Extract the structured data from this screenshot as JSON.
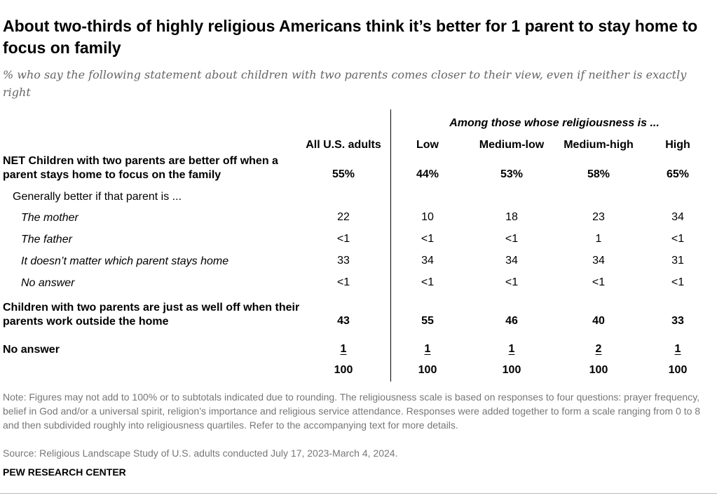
{
  "title": "About two-thirds of highly religious Americans think it’s better for 1 parent to stay home to focus on family",
  "subtitle": "% who say the following statement about children with two parents comes closer to their view, even if neither is exactly right",
  "chart_data": {
    "type": "table",
    "group_header": "Among those whose religiousness is ...",
    "columns": [
      "All U.S. adults",
      "Low",
      "Medium-low",
      "Medium-high",
      "High"
    ],
    "rows": [
      {
        "label": "NET Children with two parents are better off when a parent stays home to focus on the family",
        "values": [
          "55%",
          "44%",
          "53%",
          "58%",
          "65%"
        ],
        "style": "bold"
      },
      {
        "label": "Generally better if that parent is ...",
        "values": [],
        "style": "sub"
      },
      {
        "label": "The mother",
        "values": [
          "22",
          "10",
          "18",
          "23",
          "34"
        ],
        "style": "italic"
      },
      {
        "label": "The father",
        "values": [
          "<1",
          "<1",
          "<1",
          "1",
          "<1"
        ],
        "style": "italic"
      },
      {
        "label": "It doesn’t matter which parent stays home",
        "values": [
          "33",
          "34",
          "34",
          "34",
          "31"
        ],
        "style": "italic"
      },
      {
        "label": "No answer",
        "values": [
          "<1",
          "<1",
          "<1",
          "<1",
          "<1"
        ],
        "style": "italic"
      },
      {
        "label": "Children with two parents are just as well off when their parents work outside the home",
        "values": [
          "43",
          "55",
          "46",
          "40",
          "33"
        ],
        "style": "bold"
      },
      {
        "label": "No answer",
        "values": [
          "1",
          "1",
          "1",
          "2",
          "1"
        ],
        "style": "bold"
      },
      {
        "label": "",
        "values": [
          "100",
          "100",
          "100",
          "100",
          "100"
        ],
        "style": "total"
      }
    ]
  },
  "note": "Note: Figures may not add to 100% or to subtotals indicated due to rounding. The religiousness scale is based on responses to four questions: prayer frequency, belief in God and/or a universal spirit, religion’s importance and religious service attendance. Responses were added together to form a scale ranging from 0 to 8 and then subdivided roughly into religiousness quartiles. Refer to the accompanying text for more details.",
  "source": "Source: Religious Landscape Study of U.S. adults conducted July 17, 2023-March 4, 2024.",
  "footer": "PEW RESEARCH CENTER"
}
